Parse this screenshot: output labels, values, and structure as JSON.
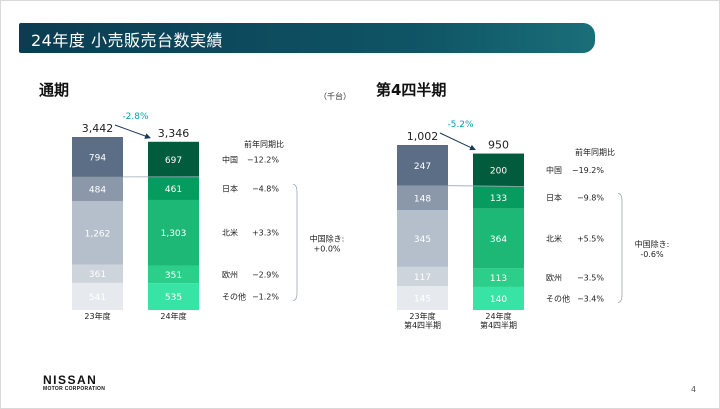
{
  "slide": {
    "title": "24年度 小売販売台数実績",
    "page_number": "4",
    "logo": {
      "brand": "NISSAN",
      "sub": "MOTOR CORPORATION"
    }
  },
  "colors": {
    "title_bar": "#0b3c52",
    "prev_year_shades": [
      "#5c6e85",
      "#8a98aa",
      "#b4bfcb",
      "#cdd4dc",
      "#e6eaee"
    ],
    "curr_year_shades": [
      "#005c3c",
      "#079c5f",
      "#1db776",
      "#2bcf8a",
      "#38e3a6"
    ],
    "change_label": "#00a0b0"
  },
  "chart_data": [
    {
      "type": "stacked-bar",
      "section_title": "通期",
      "unit": "（千台）",
      "categories": [
        "23年度",
        "24年度"
      ],
      "totals": [
        "3,442",
        "3,346"
      ],
      "total_change": "-2.8%",
      "legend_header": "前年同期比",
      "note": [
        "中国除き:",
        "+0.0%"
      ],
      "series": [
        {
          "name": "中国",
          "values": [
            "794",
            "697"
          ],
          "change": "−12.2%"
        },
        {
          "name": "日本",
          "values": [
            "484",
            "461"
          ],
          "change": "−4.8%"
        },
        {
          "name": "北米",
          "values": [
            "1,262",
            "1,303"
          ],
          "change": "+3.3%"
        },
        {
          "name": "欧州",
          "values": [
            "361",
            "351"
          ],
          "change": "−2.9%"
        },
        {
          "name": "その他",
          "values": [
            "541",
            "535"
          ],
          "change": "−1.2%"
        }
      ],
      "numeric": {
        "totals": [
          3442,
          3346
        ],
        "values": [
          [
            794,
            697
          ],
          [
            484,
            461
          ],
          [
            1262,
            1303
          ],
          [
            361,
            351
          ],
          [
            541,
            535
          ]
        ]
      }
    },
    {
      "type": "stacked-bar",
      "section_title": "第4四半期",
      "unit": "",
      "categories": [
        "23年度\n第4四半期",
        "24年度\n第4四半期"
      ],
      "totals": [
        "1,002",
        "950"
      ],
      "total_change": "-5.2%",
      "legend_header": "前年同期比",
      "note": [
        "中国除き:",
        "-0.6%"
      ],
      "series": [
        {
          "name": "中国",
          "values": [
            "247",
            "200"
          ],
          "change": "−19.2%"
        },
        {
          "name": "日本",
          "values": [
            "148",
            "133"
          ],
          "change": "−9.8%"
        },
        {
          "name": "北米",
          "values": [
            "345",
            "364"
          ],
          "change": "+5.5%"
        },
        {
          "name": "欧州",
          "values": [
            "117",
            "113"
          ],
          "change": "−3.5%"
        },
        {
          "name": "その他",
          "values": [
            "145",
            "140"
          ],
          "change": "−3.4%"
        }
      ],
      "numeric": {
        "totals": [
          1002,
          950
        ],
        "values": [
          [
            247,
            200
          ],
          [
            148,
            133
          ],
          [
            345,
            364
          ],
          [
            117,
            113
          ],
          [
            145,
            140
          ]
        ]
      }
    }
  ]
}
